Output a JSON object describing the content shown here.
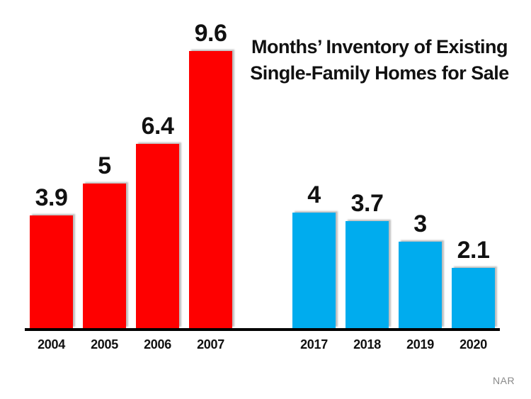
{
  "chart_data": {
    "type": "bar",
    "title_line1": "Months’ Inventory of Existing",
    "title_line2": "Single-Family Homes for Sale",
    "xlabel": "",
    "ylabel": "",
    "ylim": [
      0,
      9.6
    ],
    "grid": false,
    "legend": "none",
    "axis_color": "#000000",
    "groups": [
      {
        "name": "2004-2007",
        "bar_color": "#fe0000",
        "categories": [
          "2004",
          "2005",
          "2006",
          "2007"
        ],
        "values": [
          3.9,
          5,
          6.4,
          9.6
        ],
        "value_labels": [
          "3.9",
          "5",
          "6.4",
          "9.6"
        ]
      },
      {
        "name": "2017-2020",
        "bar_color": "#00acee",
        "categories": [
          "2017",
          "2018",
          "2019",
          "2020"
        ],
        "values": [
          4,
          3.7,
          3,
          2.1
        ],
        "value_labels": [
          "4",
          "3.7",
          "3",
          "2.1"
        ]
      }
    ]
  },
  "source": {
    "label": "NAR"
  },
  "colors": {
    "red_bars": "#fe0000",
    "blue_bars": "#00acee",
    "text": "#111111",
    "source_text": "#8a8a8a",
    "background": "#ffffff"
  }
}
